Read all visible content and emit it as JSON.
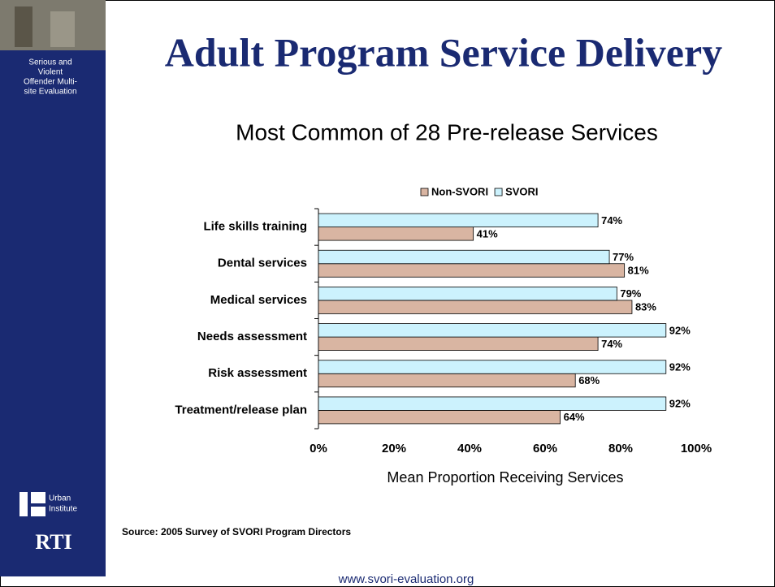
{
  "sidebar": {
    "lines": [
      "Serious and",
      "Violent",
      "Offender Multi-",
      "site Evaluation"
    ],
    "urban": [
      "Urban",
      "Institute"
    ],
    "rti": "RTI"
  },
  "chart_data": {
    "type": "bar",
    "orientation": "horizontal",
    "title": "Adult Program Service Delivery",
    "subtitle": "Most Common of 28 Pre-release Services",
    "categories": [
      "Life skills training",
      "Dental services",
      "Medical services",
      "Needs assessment",
      "Risk assessment",
      "Treatment/release plan"
    ],
    "series": [
      {
        "name": "Non-SVORI",
        "color": "#d9b5a2",
        "values": [
          41,
          81,
          83,
          74,
          68,
          64
        ],
        "value_labels": [
          "41%",
          "81%",
          "83%",
          "74%",
          "68%",
          "64%"
        ]
      },
      {
        "name": "SVORI",
        "color": "#ccf2fd",
        "values": [
          74,
          77,
          79,
          92,
          92,
          92
        ],
        "value_labels": [
          "74%",
          "77%",
          "79%",
          "92%",
          "92%",
          "92%"
        ]
      }
    ],
    "xlim": [
      0,
      100
    ],
    "xticks": [
      {
        "value": 0,
        "label": "0%"
      },
      {
        "value": 20,
        "label": "20%"
      },
      {
        "value": 40,
        "label": "40%"
      },
      {
        "value": 60,
        "label": "60%"
      },
      {
        "value": 80,
        "label": "80%"
      },
      {
        "value": 100,
        "label": "100%"
      }
    ],
    "x_label": "Mean Proportion Receiving Services",
    "legend": "top"
  },
  "source": "Source: 2005 Survey of SVORI Program Directors",
  "footer": "www.svori-evaluation.org"
}
